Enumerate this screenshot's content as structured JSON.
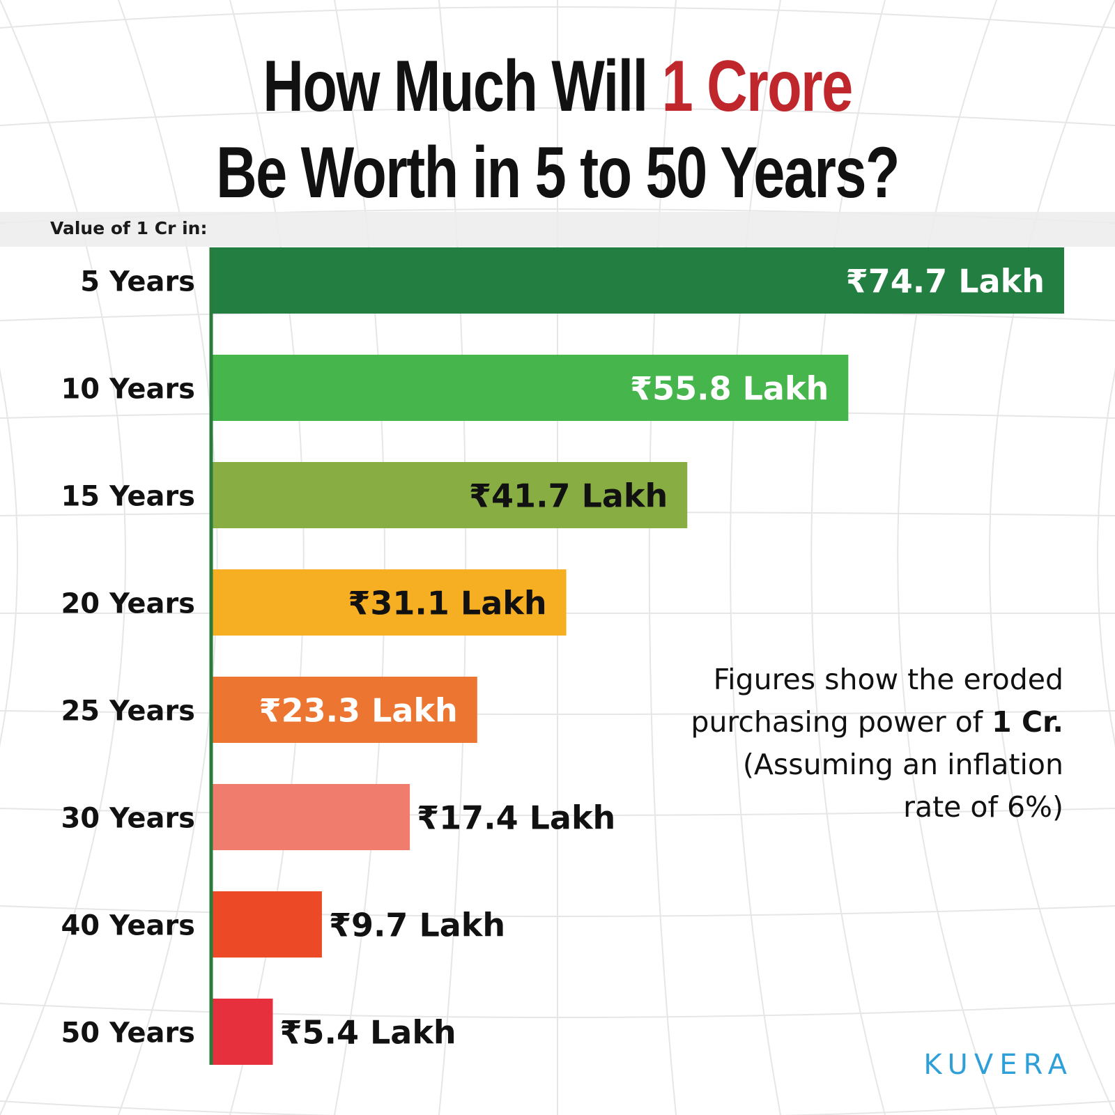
{
  "title": {
    "line1_prefix": "How Much Will ",
    "line1_accent": "1 Crore",
    "line2": "Be Worth in 5 to 50 Years?"
  },
  "header_label": "Value of 1 Cr in:",
  "note": {
    "line1": "Figures show the eroded",
    "line2_prefix": "purchasing power of ",
    "line2_bold": "1 Cr.",
    "line3": "(Assuming an inflation",
    "line4": "rate of 6%)"
  },
  "logo": "KUVERA",
  "colors": {
    "title_accent": "#c0272d",
    "axis": "#2a7a3e",
    "logo": "#2f9fd8"
  },
  "chart_data": {
    "type": "bar",
    "orientation": "horizontal",
    "categories": [
      "5 Years",
      "10 Years",
      "15 Years",
      "20 Years",
      "25 Years",
      "30 Years",
      "40 Years",
      "50 Years"
    ],
    "values": [
      74.7,
      55.8,
      41.7,
      31.1,
      23.3,
      17.4,
      9.7,
      5.4
    ],
    "unit": "Lakh",
    "labels": [
      "₹74.7 Lakh",
      "₹55.8 Lakh",
      "₹41.7 Lakh",
      "₹31.1 Lakh",
      "₹23.3 Lakh",
      "₹17.4 Lakh",
      "₹9.7 Lakh",
      "₹5.4 Lakh"
    ],
    "bar_colors": [
      "#237e41",
      "#46b54b",
      "#88ad43",
      "#f6ae22",
      "#ec7531",
      "#f07c6e",
      "#ec4a27",
      "#e7303d"
    ],
    "label_colors": [
      "#ffffff",
      "#ffffff",
      "#111111",
      "#111111",
      "#ffffff",
      "#111111",
      "#111111",
      "#111111"
    ],
    "label_inside": [
      true,
      true,
      true,
      true,
      true,
      false,
      false,
      false
    ],
    "xlim": [
      0,
      74.7
    ],
    "title": "",
    "xlabel": "",
    "ylabel": ""
  }
}
